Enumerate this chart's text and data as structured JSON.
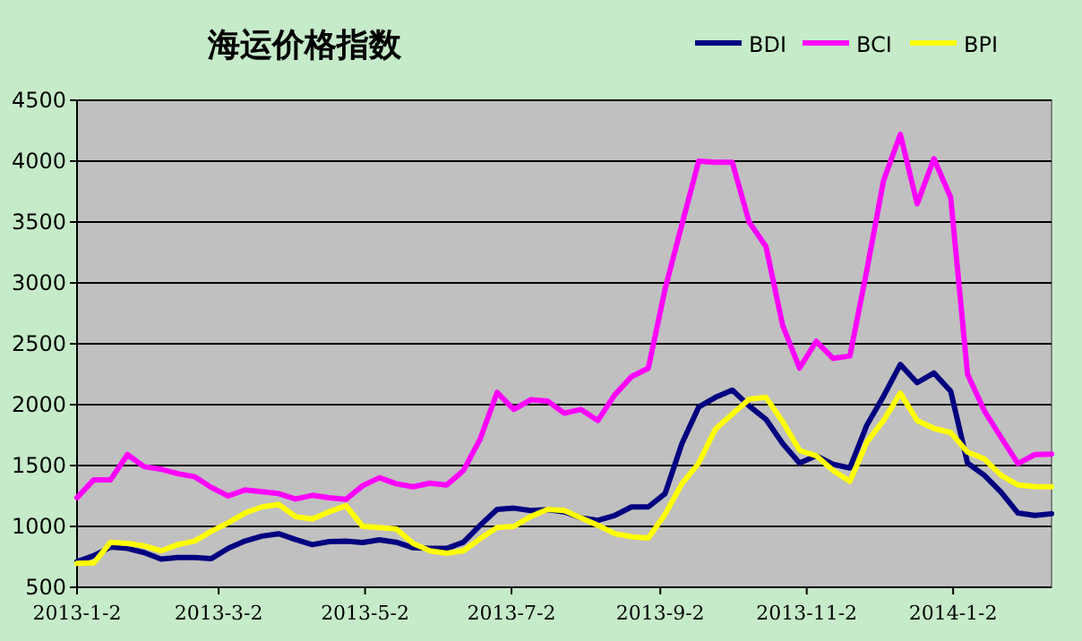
{
  "chart_data": {
    "type": "line",
    "title": "海运价格指数",
    "legend": "top right",
    "grid": "y",
    "marker": "none",
    "line_style": "solid",
    "x": [
      "2013-01-02",
      "2013-01-09",
      "2013-01-16",
      "2013-01-23",
      "2013-01-30",
      "2013-02-06",
      "2013-02-13",
      "2013-02-20",
      "2013-02-27",
      "2013-03-06",
      "2013-03-13",
      "2013-03-20",
      "2013-03-27",
      "2013-04-03",
      "2013-04-10",
      "2013-04-17",
      "2013-04-24",
      "2013-05-01",
      "2013-05-08",
      "2013-05-15",
      "2013-05-22",
      "2013-05-29",
      "2013-06-05",
      "2013-06-12",
      "2013-06-19",
      "2013-06-26",
      "2013-07-03",
      "2013-07-10",
      "2013-07-17",
      "2013-07-24",
      "2013-07-31",
      "2013-08-07",
      "2013-08-14",
      "2013-08-21",
      "2013-08-28",
      "2013-09-04",
      "2013-09-11",
      "2013-09-18",
      "2013-09-25",
      "2013-10-02",
      "2013-10-09",
      "2013-10-16",
      "2013-10-23",
      "2013-10-30",
      "2013-11-06",
      "2013-11-13",
      "2013-11-20",
      "2013-11-27",
      "2013-12-04",
      "2013-12-11",
      "2013-12-18",
      "2013-12-25",
      "2014-01-01",
      "2014-01-08",
      "2014-01-15",
      "2014-01-22",
      "2014-01-29",
      "2014-02-05",
      "2014-02-12"
    ],
    "series": [
      {
        "name": "BDI",
        "color": "#000080",
        "values": [
          711,
          760,
          830,
          819,
          785,
          731,
          745,
          745,
          736,
          820,
          880,
          920,
          940,
          893,
          850,
          875,
          878,
          868,
          890,
          870,
          825,
          819,
          819,
          870,
          1010,
          1140,
          1150,
          1130,
          1138,
          1120,
          1070,
          1050,
          1090,
          1160,
          1160,
          1270,
          1680,
          1980,
          2060,
          2120,
          1990,
          1880,
          1680,
          1520,
          1580,
          1510,
          1480,
          1830,
          2070,
          2330,
          2180,
          2260,
          2110,
          1520,
          1420,
          1280,
          1110,
          1090,
          1104
        ]
      },
      {
        "name": "BCI",
        "color": "#ff00ff",
        "values": [
          1236,
          1383,
          1383,
          1590,
          1490,
          1470,
          1433,
          1408,
          1320,
          1250,
          1300,
          1285,
          1270,
          1225,
          1255,
          1235,
          1222,
          1334,
          1400,
          1350,
          1325,
          1355,
          1340,
          1460,
          1720,
          2100,
          1960,
          2040,
          2030,
          1930,
          1960,
          1870,
          2080,
          2230,
          2300,
          2950,
          3480,
          4000,
          3990,
          3990,
          3500,
          3300,
          2650,
          2300,
          2520,
          2380,
          2400,
          3100,
          3840,
          4220,
          3650,
          4020,
          3700,
          2250,
          1950,
          1730,
          1516,
          1590,
          1594
        ]
      },
      {
        "name": "BPI",
        "color": "#ffff00",
        "values": [
          696,
          700,
          870,
          860,
          840,
          800,
          850,
          880,
          960,
          1030,
          1110,
          1160,
          1180,
          1080,
          1060,
          1120,
          1170,
          1000,
          990,
          980,
          860,
          800,
          780,
          800,
          900,
          990,
          1000,
          1080,
          1140,
          1130,
          1070,
          1010,
          940,
          915,
          905,
          1100,
          1350,
          1520,
          1800,
          1923,
          2045,
          2060,
          1860,
          1625,
          1580,
          1460,
          1370,
          1690,
          1870,
          2095,
          1870,
          1805,
          1770,
          1610,
          1555,
          1420,
          1340,
          1328,
          1325
        ]
      }
    ],
    "xlim": [
      "2013-01-02",
      "2014-02-12"
    ],
    "xticks": [
      {
        "value": "2013-01-02",
        "label": "2013-1-2"
      },
      {
        "value": "2013-03-02",
        "label": "2013-3-2"
      },
      {
        "value": "2013-05-02",
        "label": "2013-5-2"
      },
      {
        "value": "2013-07-02",
        "label": "2013-7-2"
      },
      {
        "value": "2013-09-02",
        "label": "2013-9-2"
      },
      {
        "value": "2013-11-02",
        "label": "2013-11-2"
      },
      {
        "value": "2014-01-02",
        "label": "2014-1-2"
      }
    ],
    "ylim": [
      500,
      4500
    ],
    "yticks": [
      500,
      1000,
      1500,
      2000,
      2500,
      3000,
      3500,
      4000,
      4500
    ]
  }
}
